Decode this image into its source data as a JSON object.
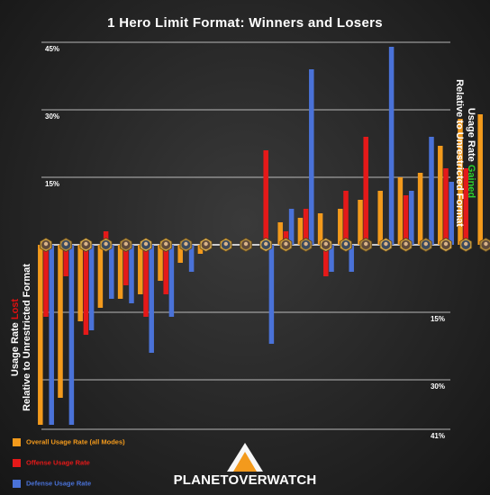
{
  "chart_data": {
    "type": "bar",
    "title": "1 Hero Limit Format: Winners and Losers",
    "ylabel_right": {
      "line1_before": "Usage Rate ",
      "line1_highlight": "Gained",
      "line2": "Relative to Unrestricted Format"
    },
    "ylabel_left": {
      "line1_before": "Usage Rate ",
      "line1_highlight": "Lost",
      "line2": "Relative to Unrestricted Format"
    },
    "y_ticks": [
      {
        "value": 45,
        "label": "45%"
      },
      {
        "value": 30,
        "label": "30%"
      },
      {
        "value": 15,
        "label": "15%"
      },
      {
        "value": -15,
        "label": "15%"
      },
      {
        "value": -30,
        "label": "30%"
      },
      {
        "value": -41,
        "label": "41%"
      }
    ],
    "ylim": [
      -41,
      45
    ],
    "grid": true,
    "hero_count": 23,
    "series": [
      {
        "name": "Overall Usage Rate (all Modes)",
        "color": "#f39a1c",
        "values": [
          -40,
          -34,
          -17,
          -14,
          -12,
          -11,
          -8,
          -4,
          -2,
          0,
          0,
          0,
          5,
          6,
          7,
          8,
          10,
          12,
          15,
          16,
          22,
          28,
          29
        ]
      },
      {
        "name": "Offense Usage Rate",
        "color": "#e51919",
        "values": [
          -16,
          -7,
          -20,
          3,
          -9,
          -16,
          -11,
          0,
          0,
          0,
          0,
          21,
          3,
          8,
          -7,
          12,
          24,
          0,
          11,
          0,
          17,
          17,
          0
        ]
      },
      {
        "name": "Defense Usage Rate",
        "color": "#4a72d8",
        "values": [
          -40,
          -40,
          -19,
          -12,
          -13,
          -24,
          -16,
          -6,
          0,
          0,
          0,
          -22,
          8,
          39,
          -6,
          -6,
          0,
          44,
          12,
          24,
          14,
          0,
          0
        ]
      }
    ],
    "legend_position": "bottom-left"
  },
  "brand": "PLANETOVERWATCH",
  "colors": {
    "gain": "#2ed12e",
    "lost": "#e01010",
    "offense": "#e51919",
    "defense": "#4a72d8",
    "overall": "#f39a1c"
  }
}
